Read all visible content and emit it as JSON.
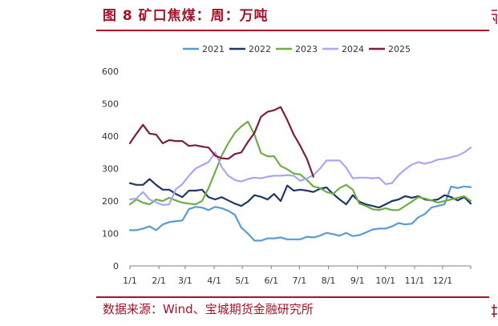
{
  "figure": {
    "title": "图 8 矿口焦煤：周：万吨",
    "source": "数据来源：Wind、宝城期货金融研究所"
  },
  "colors": {
    "accent": "#a5122a",
    "s2021": "#5b9bd5",
    "s2022": "#1f3864",
    "s2023": "#70ad47",
    "s2024": "#a9a7f5",
    "s2025": "#7b1f3f"
  },
  "chart_data": {
    "type": "line",
    "title": "",
    "xlabel": "",
    "ylabel": "",
    "ylim": [
      0,
      600
    ],
    "yticks": [
      0,
      100,
      200,
      300,
      400,
      500,
      600
    ],
    "xlim": [
      0,
      52
    ],
    "xticks": [
      {
        "label": "1/1",
        "week": 0
      },
      {
        "label": "2/1",
        "week": 4.43
      },
      {
        "label": "3/1",
        "week": 8.43
      },
      {
        "label": "4/1",
        "week": 12.86
      },
      {
        "label": "5/1",
        "week": 17.14
      },
      {
        "label": "6/1",
        "week": 21.57
      },
      {
        "label": "7/1",
        "week": 25.86
      },
      {
        "label": "8/1",
        "week": 30.29
      },
      {
        "label": "9/1",
        "week": 34.71
      },
      {
        "label": "10/1",
        "week": 39.0
      },
      {
        "label": "11/1",
        "week": 43.43
      },
      {
        "label": "12/1",
        "week": 47.71
      }
    ],
    "grid": false,
    "legend": "top",
    "series": [
      {
        "name": "2021",
        "color": "#5b9bd5",
        "values": [
          110,
          110,
          115,
          122,
          110,
          128,
          135,
          138,
          140,
          175,
          182,
          180,
          172,
          182,
          178,
          170,
          158,
          118,
          100,
          78,
          78,
          85,
          85,
          88,
          82,
          82,
          82,
          90,
          88,
          93,
          102,
          98,
          93,
          102,
          92,
          95,
          103,
          112,
          115,
          115,
          122,
          132,
          128,
          130,
          150,
          160,
          180,
          185,
          190,
          245,
          240,
          245,
          243
        ]
      },
      {
        "name": "2022",
        "color": "#1f3864",
        "values": [
          255,
          250,
          250,
          268,
          250,
          235,
          235,
          222,
          212,
          232,
          232,
          235,
          212,
          205,
          212,
          202,
          192,
          185,
          198,
          218,
          213,
          205,
          222,
          200,
          248,
          232,
          235,
          232,
          228,
          238,
          242,
          222,
          205,
          190,
          218,
          198,
          190,
          185,
          180,
          190,
          200,
          205,
          215,
          210,
          215,
          205,
          202,
          205,
          218,
          212,
          202,
          212,
          192
        ]
      },
      {
        "name": "2023",
        "color": "#70ad47",
        "values": [
          190,
          205,
          195,
          190,
          205,
          200,
          210,
          202,
          195,
          192,
          190,
          200,
          240,
          290,
          340,
          378,
          410,
          430,
          445,
          405,
          348,
          338,
          338,
          308,
          298,
          285,
          282,
          265,
          245,
          240,
          228,
          222,
          240,
          250,
          235,
          192,
          185,
          175,
          172,
          178,
          172,
          172,
          185,
          198,
          212,
          208,
          202,
          195,
          200,
          205,
          210,
          215,
          200
        ]
      },
      {
        "name": "2024",
        "color": "#a9a7f5",
        "values": [
          205,
          208,
          228,
          205,
          196,
          188,
          190,
          236,
          252,
          278,
          300,
          310,
          320,
          350,
          305,
          278,
          265,
          260,
          268,
          272,
          270,
          275,
          278,
          278,
          280,
          278,
          262,
          270,
          280,
          300,
          325,
          325,
          325,
          303,
          270,
          272,
          272,
          270,
          272,
          252,
          255,
          280,
          298,
          312,
          320,
          315,
          320,
          328,
          330,
          335,
          340,
          350,
          365
        ]
      },
      {
        "name": "2025",
        "color": "#7b1f3f",
        "values": [
          378,
          408,
          435,
          408,
          405,
          378,
          388,
          385,
          385,
          370,
          372,
          368,
          365,
          340,
          332,
          330,
          345,
          350,
          382,
          410,
          460,
          475,
          480,
          490,
          450,
          405,
          370,
          330,
          275
        ]
      }
    ]
  }
}
